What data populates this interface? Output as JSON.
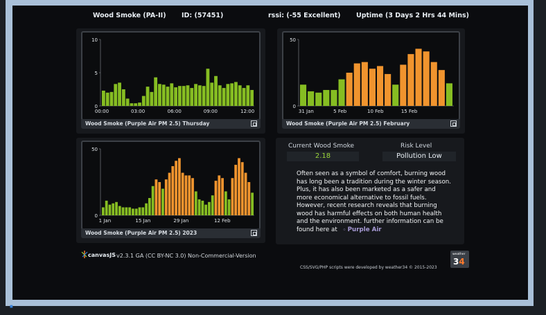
{
  "header": {
    "station_label": "Wood Smoke (",
    "station_model": "PA-II",
    "station_close": ")",
    "id_label": "ID: (",
    "id_value": "57451",
    "id_close": ")",
    "rssi_label": "rssi: (",
    "rssi_value": "-55 Excellent",
    "rssi_close": ")",
    "uptime_label": "Uptime (",
    "uptime_days": "3",
    "uptime_days_unit": " Days ",
    "uptime_hrs": "2",
    "uptime_hrs_unit": " Hrs ",
    "uptime_mins": "44",
    "uptime_mins_unit": " Mins)"
  },
  "chart_data": [
    {
      "type": "bar",
      "title": "Wood Smoke (Purple Air PM 2.5) Thursday",
      "ylim": [
        0,
        10
      ],
      "yticks": [
        "0",
        "5",
        "10"
      ],
      "xticks": [
        "00:00",
        "03:00",
        "06:00",
        "09:00",
        "12:00"
      ],
      "threshold": 12,
      "values": [
        2.3,
        2.0,
        2.1,
        3.3,
        3.5,
        2.5,
        1.1,
        0.4,
        0.4,
        0.5,
        1.5,
        2.9,
        2.1,
        4.3,
        3.3,
        3.2,
        2.9,
        3.4,
        2.8,
        3.0,
        3.0,
        3.1,
        2.7,
        3.3,
        3.1,
        3.0,
        5.6,
        3.5,
        4.5,
        3.1,
        2.7,
        3.3,
        3.4,
        3.6,
        3.1,
        2.7,
        3.1,
        2.4
      ],
      "colors": {
        "low": "#86bd22",
        "moderate": "#f0942e"
      }
    },
    {
      "type": "bar",
      "title": "Wood Smoke (Purple Air PM 2.5) February",
      "ylim": [
        0,
        50
      ],
      "yticks": [
        "0",
        "50"
      ],
      "xticks": [
        "31 Jan",
        "5 Feb",
        "10 Feb",
        "15 Feb"
      ],
      "threshold": 24,
      "values": [
        16,
        11,
        10,
        12,
        12,
        20,
        25,
        32,
        33,
        28,
        30,
        24,
        16,
        31,
        39,
        43,
        41,
        33,
        27,
        17
      ],
      "colors": {
        "low": "#86bd22",
        "moderate": "#f0942e"
      }
    },
    {
      "type": "bar",
      "title": "Wood Smoke (Purple Air PM 2.5) 2023",
      "ylim": [
        0,
        50
      ],
      "yticks": [
        "0",
        "50"
      ],
      "xticks": [
        "1 Jan",
        "15 Jan",
        "29 Jan",
        "12 Feb"
      ],
      "threshold": 24,
      "values": [
        6,
        11,
        8,
        9,
        10,
        7,
        6,
        6,
        6,
        5,
        5,
        6,
        6,
        9,
        13,
        22,
        27,
        25,
        20,
        27,
        32,
        37,
        41,
        43,
        32,
        30,
        30,
        28,
        18,
        12,
        11,
        8,
        10,
        15,
        26,
        30,
        28,
        18,
        12,
        28,
        38,
        43,
        40,
        32,
        25,
        17
      ],
      "colors": {
        "low": "#86bd22",
        "moderate": "#f0942e"
      }
    }
  ],
  "current": {
    "label": "Current Wood Smoke",
    "value": "2.18",
    "risk_label": "Risk Level",
    "risk_value": "Pollution Low"
  },
  "info": {
    "text": "Often seen as a symbol of comfort, burning wood has long been a tradition during the winter season. Plus, it has also been marketed as a safer and more economical alternative to fossil fuels. However, recent research reveals that burning wood has harmful effects on both human health and the environment. further information can be found here at",
    "link": "Purple Air"
  },
  "footer": {
    "canvas_brand": "canvasJS",
    "version": "v2.3.1 GA (CC BY-NC 3.0) Non-Commercial-Version",
    "credit": "CSS/SVG/PHP scripts were developed by weather34 © 2015-2023",
    "w34_small": "weather",
    "w34_main": "3",
    "w34_accent": "4"
  }
}
